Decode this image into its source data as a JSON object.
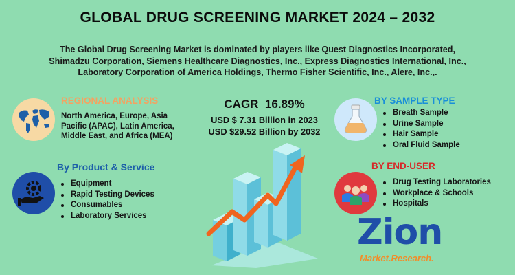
{
  "title": "GLOBAL DRUG SCREENING MARKET 2024 – 2032",
  "intro_lines": [
    "The Global Drug Screening Market is dominated by players like Quest Diagnostics Incorporated,",
    "Shimadzu Corporation, Siemens Healthcare Diagnostics, Inc., Express Diagnostics International, Inc.,",
    "Laboratory Corporation of America Holdings, Thermo Fisher Scientific, Inc., Alere, Inc.,."
  ],
  "regional": {
    "heading": "REGIONAL ANALYSIS",
    "lines": [
      "North America, Europe, Asia",
      "Pacific (APAC), Latin America,",
      "Middle East, and Africa (MEA)"
    ],
    "icon": "world-map-icon"
  },
  "product": {
    "heading": "By Product & Service",
    "items": [
      "Equipment",
      "Rapid Testing Devices",
      "Consumables",
      "Laboratory Services"
    ],
    "icon": "hand-gear-icon"
  },
  "center": {
    "cagr_label": "CAGR",
    "cagr_value": "16.89%",
    "usd_2023": "USD $ 7.31 Billion in 2023",
    "usd_2032": "USD $29.52 Billion  by 2032"
  },
  "sample_type": {
    "heading": "BY SAMPLE TYPE",
    "items": [
      "Breath Sample",
      "Urine Sample",
      "Hair Sample",
      "Oral Fluid Sample"
    ],
    "icon": "flask-icon"
  },
  "end_user": {
    "heading": "BY END-USER",
    "items": [
      "Drug Testing Laboratories",
      "Workplace & Schools",
      "Hospitals"
    ],
    "icon": "people-group-icon"
  },
  "logo": {
    "name": "Zion",
    "sub": "Market.Research."
  },
  "colors": {
    "background": "#8fdcb0",
    "regional_heading": "#f4a261",
    "product_heading": "#1d5fa8",
    "sample_heading": "#1a8fd8",
    "enduser_heading": "#d62828",
    "logo_blue": "#1f4ea8",
    "logo_orange": "#f28c28"
  }
}
